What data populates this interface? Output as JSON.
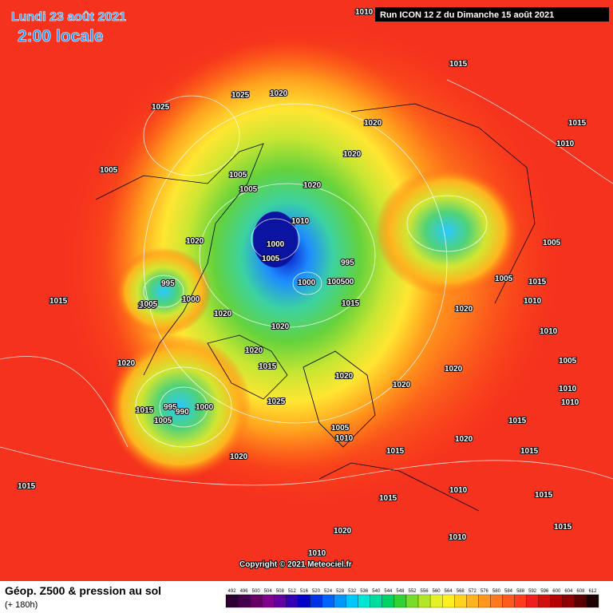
{
  "header": {
    "date": "Lundi 23 août 2021",
    "time": "2:00 locale",
    "run": "Run ICON 12 Z du Dimanche 15 août 2021"
  },
  "copyright": "Copyright © 2021 Meteociel.fr",
  "footer": {
    "title": "Géop. Z500 & pression au sol",
    "lead": "(+ 180h)"
  },
  "scale": {
    "labels": [
      492,
      496,
      500,
      504,
      508,
      512,
      516,
      520,
      524,
      528,
      532,
      536,
      540,
      544,
      548,
      552,
      556,
      560,
      564,
      568,
      572,
      576,
      580,
      584,
      588,
      592,
      596,
      600,
      604,
      608,
      612
    ]
  },
  "isobar_labels": [
    "1010",
    "1015",
    "1025",
    "1025",
    "1020",
    "1020",
    "1015",
    "1010",
    "1020",
    "1005",
    "1005",
    "1005",
    "1020",
    "1010",
    "1000",
    "1005",
    "995",
    "1000",
    "100500",
    "1015",
    "1020",
    "1005",
    "1005",
    "1010",
    "1015",
    "995",
    "1000",
    "1005",
    "1020",
    "1015",
    "1020",
    "1020",
    "1020",
    "1015",
    "1025",
    "1020",
    "995",
    "990",
    "1000",
    "1005",
    "1015",
    "1020",
    "1005",
    "1010",
    "1020",
    "1015",
    "1020",
    "1020",
    "1015",
    "1010",
    "1015",
    "1015",
    "1010",
    "1015",
    "1010",
    "1005",
    "1010",
    "1005",
    "1020",
    "1015",
    "1010",
    "1015",
    "1020",
    "1010"
  ]
}
